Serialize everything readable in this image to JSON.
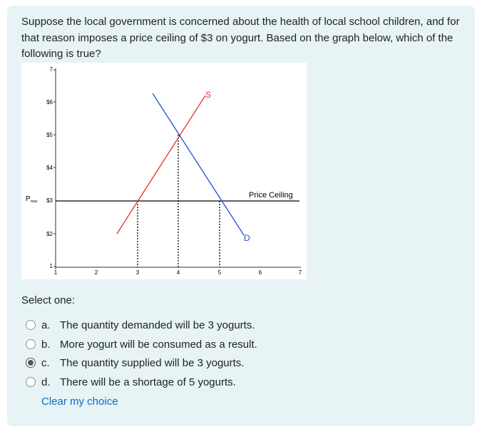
{
  "question": {
    "text": "Suppose the local government is concerned about the health of local school children, and for that reason imposes a price ceiling of $3 on yogurt. Based on the graph below, which of the following is true?"
  },
  "graph": {
    "y_top_label": "7",
    "y_ticks": [
      "$6",
      "$5",
      "$4",
      "$3",
      "$2"
    ],
    "y_bottom_label": "1",
    "x_ticks": [
      "1",
      "2",
      "3",
      "4",
      "5",
      "6",
      "7"
    ],
    "pmax_label": "P",
    "pmax_subscript": "max",
    "supply_label": "S",
    "demand_label": "D",
    "price_ceiling_label": "Price Ceiling",
    "colors": {
      "supply": "#e8302a",
      "demand": "#1f4fd8",
      "ceiling": "#000000"
    }
  },
  "prompt": {
    "select_one": "Select one:"
  },
  "options": [
    {
      "letter": "a.",
      "text": "The quantity demanded will be 3 yogurts.",
      "selected": false
    },
    {
      "letter": "b.",
      "text": "More yogurt will be consumed as a result.",
      "selected": false
    },
    {
      "letter": "c.",
      "text": "The quantity supplied will be 3 yogurts.",
      "selected": true
    },
    {
      "letter": "d.",
      "text": "There will be a shortage of 5 yogurts.",
      "selected": false
    }
  ],
  "clear_choice": "Clear my choice"
}
